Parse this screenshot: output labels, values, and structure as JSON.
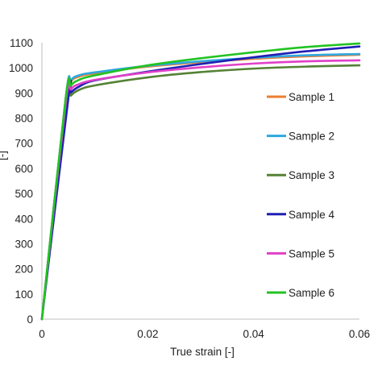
{
  "chart_data": {
    "type": "line",
    "xlabel": "True strain [-]",
    "ylabel": "[-]",
    "xlim": [
      0,
      0.06
    ],
    "ylim": [
      0,
      1100
    ],
    "xticks": [
      "0",
      "0.02",
      "0.04",
      "0.06"
    ],
    "yticks": [
      "0",
      "100",
      "200",
      "300",
      "400",
      "500",
      "600",
      "700",
      "800",
      "900",
      "1000",
      "1100"
    ],
    "legend_position": "right",
    "grid": false,
    "series": [
      {
        "name": "Sample 1",
        "color": "#ed7d31",
        "points": [
          [
            0,
            0
          ],
          [
            0.0045,
            880
          ],
          [
            0.0055,
            945
          ],
          [
            0.007,
            965
          ],
          [
            0.01,
            978
          ],
          [
            0.02,
            1005
          ],
          [
            0.03,
            1022
          ],
          [
            0.04,
            1036
          ],
          [
            0.05,
            1046
          ],
          [
            0.06,
            1052
          ]
        ]
      },
      {
        "name": "Sample 2",
        "color": "#2ea8e0",
        "points": [
          [
            0,
            0
          ],
          [
            0.0045,
            880
          ],
          [
            0.0055,
            950
          ],
          [
            0.007,
            970
          ],
          [
            0.01,
            982
          ],
          [
            0.02,
            1008
          ],
          [
            0.03,
            1026
          ],
          [
            0.04,
            1040
          ],
          [
            0.05,
            1050
          ],
          [
            0.06,
            1055
          ]
        ]
      },
      {
        "name": "Sample 3",
        "color": "#548235",
        "points": [
          [
            0,
            0
          ],
          [
            0.0045,
            850
          ],
          [
            0.0055,
            890
          ],
          [
            0.007,
            912
          ],
          [
            0.01,
            930
          ],
          [
            0.02,
            962
          ],
          [
            0.03,
            983
          ],
          [
            0.04,
            997
          ],
          [
            0.05,
            1005
          ],
          [
            0.06,
            1010
          ]
        ]
      },
      {
        "name": "Sample 4",
        "color": "#1f1fb4",
        "points": [
          [
            0,
            0
          ],
          [
            0.005,
            880
          ],
          [
            0.0055,
            902
          ],
          [
            0.007,
            925
          ],
          [
            0.01,
            950
          ],
          [
            0.02,
            985
          ],
          [
            0.03,
            1015
          ],
          [
            0.04,
            1042
          ],
          [
            0.05,
            1066
          ],
          [
            0.06,
            1085
          ]
        ]
      },
      {
        "name": "Sample 5",
        "color": "#e040c8",
        "points": [
          [
            0,
            0
          ],
          [
            0.0045,
            860
          ],
          [
            0.0055,
            915
          ],
          [
            0.007,
            935
          ],
          [
            0.01,
            952
          ],
          [
            0.02,
            982
          ],
          [
            0.03,
            1002
          ],
          [
            0.04,
            1017
          ],
          [
            0.05,
            1026
          ],
          [
            0.06,
            1030
          ]
        ]
      },
      {
        "name": "Sample 6",
        "color": "#22c322",
        "points": [
          [
            0,
            0
          ],
          [
            0.0045,
            880
          ],
          [
            0.0055,
            930
          ],
          [
            0.007,
            952
          ],
          [
            0.01,
            970
          ],
          [
            0.02,
            1010
          ],
          [
            0.03,
            1038
          ],
          [
            0.04,
            1062
          ],
          [
            0.05,
            1083
          ],
          [
            0.06,
            1097
          ]
        ]
      }
    ]
  }
}
